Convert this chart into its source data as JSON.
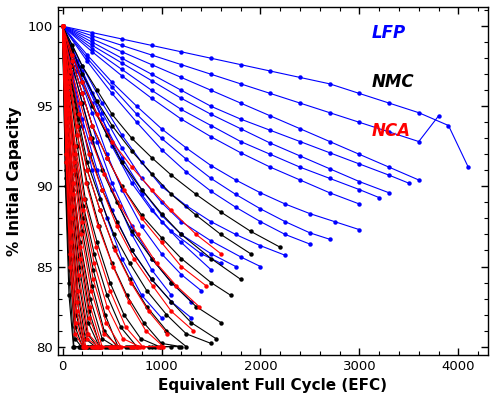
{
  "xlabel": "Equivalent Full Cycle (EFC)",
  "ylabel": "% Initial Capacity",
  "xlim": [
    -50,
    4300
  ],
  "ylim": [
    79.5,
    101.2
  ],
  "yticks": [
    80,
    85,
    90,
    95,
    100
  ],
  "xticks": [
    0,
    1000,
    2000,
    3000,
    4000
  ],
  "bg_color": "#ffffff",
  "lfp_series": [
    {
      "x": [
        0,
        300,
        600,
        900,
        1200,
        1500,
        1800,
        2100,
        2400,
        2700,
        3000,
        3300,
        3600,
        3900,
        4100
      ],
      "y": [
        100,
        99.6,
        99.2,
        98.8,
        98.4,
        98.0,
        97.6,
        97.2,
        96.8,
        96.4,
        95.8,
        95.2,
        94.6,
        93.8,
        91.2
      ]
    },
    {
      "x": [
        0,
        300,
        600,
        900,
        1200,
        1500,
        1800,
        2100,
        2400,
        2700,
        3000,
        3300,
        3600,
        3800
      ],
      "y": [
        100,
        99.4,
        98.8,
        98.2,
        97.6,
        97.0,
        96.4,
        95.8,
        95.2,
        94.6,
        94.0,
        93.4,
        92.8,
        94.4
      ]
    },
    {
      "x": [
        0,
        300,
        600,
        900,
        1200,
        1500,
        1800,
        2100,
        2400,
        2700,
        3000,
        3300,
        3600
      ],
      "y": [
        100,
        99.2,
        98.4,
        97.6,
        96.8,
        96.0,
        95.2,
        94.4,
        93.6,
        92.8,
        92.0,
        91.2,
        90.4
      ]
    },
    {
      "x": [
        0,
        300,
        600,
        900,
        1200,
        1500,
        1800,
        2100,
        2400,
        2700,
        3000,
        3300,
        3500
      ],
      "y": [
        100,
        99.0,
        98.0,
        97.0,
        96.0,
        95.0,
        94.2,
        93.5,
        92.8,
        92.1,
        91.4,
        90.7,
        90.2
      ]
    },
    {
      "x": [
        0,
        300,
        600,
        900,
        1200,
        1500,
        1800,
        2100,
        2400,
        2700,
        3000,
        3300
      ],
      "y": [
        100,
        98.8,
        97.7,
        96.6,
        95.5,
        94.5,
        93.6,
        92.7,
        91.9,
        91.1,
        90.3,
        89.6
      ]
    },
    {
      "x": [
        0,
        300,
        600,
        900,
        1200,
        1500,
        1800,
        2100,
        2400,
        2700,
        3000,
        3200
      ],
      "y": [
        100,
        98.6,
        97.3,
        96.0,
        94.8,
        93.8,
        92.8,
        92.0,
        91.2,
        90.5,
        89.8,
        89.3
      ]
    },
    {
      "x": [
        0,
        300,
        600,
        900,
        1200,
        1500,
        1800,
        2100,
        2400,
        2700,
        3000
      ],
      "y": [
        100,
        98.4,
        96.9,
        95.5,
        94.2,
        93.1,
        92.1,
        91.2,
        90.4,
        89.6,
        88.9
      ]
    },
    {
      "x": [
        0,
        250,
        500,
        750,
        1000,
        1250,
        1500,
        1750,
        2000,
        2250,
        2500,
        2750,
        3000
      ],
      "y": [
        100,
        98.2,
        96.5,
        95.0,
        93.6,
        92.4,
        91.3,
        90.4,
        89.6,
        88.9,
        88.3,
        87.8,
        87.3
      ]
    },
    {
      "x": [
        0,
        250,
        500,
        750,
        1000,
        1250,
        1500,
        1750,
        2000,
        2250,
        2500,
        2700
      ],
      "y": [
        100,
        98.0,
        96.2,
        94.5,
        93.0,
        91.7,
        90.5,
        89.5,
        88.6,
        87.8,
        87.1,
        86.7
      ]
    },
    {
      "x": [
        0,
        250,
        500,
        750,
        1000,
        1250,
        1500,
        1750,
        2000,
        2250,
        2500
      ],
      "y": [
        100,
        97.8,
        95.8,
        94.0,
        92.3,
        90.9,
        89.7,
        88.7,
        87.8,
        87.0,
        86.4
      ]
    },
    {
      "x": [
        0,
        200,
        400,
        600,
        800,
        1000,
        1250,
        1500,
        1750,
        2000,
        2250
      ],
      "y": [
        100,
        97.5,
        95.2,
        93.2,
        91.5,
        90.0,
        88.8,
        87.8,
        87.0,
        86.3,
        85.7
      ]
    },
    {
      "x": [
        0,
        200,
        400,
        600,
        800,
        1000,
        1200,
        1500,
        1800,
        2000
      ],
      "y": [
        100,
        97.2,
        94.6,
        92.4,
        90.5,
        89.0,
        87.8,
        86.6,
        85.6,
        85.0
      ]
    },
    {
      "x": [
        0,
        200,
        400,
        600,
        800,
        1000,
        1200,
        1500,
        1750
      ],
      "y": [
        100,
        97.0,
        94.2,
        91.8,
        89.8,
        88.2,
        87.0,
        85.8,
        85.0
      ]
    },
    {
      "x": [
        0,
        150,
        300,
        500,
        700,
        900,
        1100,
        1400,
        1600
      ],
      "y": [
        100,
        97.5,
        95.2,
        92.5,
        90.2,
        88.5,
        87.2,
        85.8,
        85.2
      ]
    },
    {
      "x": [
        0,
        150,
        300,
        450,
        600,
        800,
        1000,
        1200,
        1500
      ],
      "y": [
        100,
        97.8,
        95.8,
        93.5,
        91.5,
        89.5,
        87.8,
        86.5,
        84.8
      ]
    },
    {
      "x": [
        0,
        150,
        300,
        450,
        600,
        800,
        1000,
        1200,
        1400
      ],
      "y": [
        100,
        97.2,
        94.6,
        92.0,
        89.8,
        87.5,
        85.8,
        84.5,
        83.5
      ]
    },
    {
      "x": [
        0,
        100,
        200,
        350,
        500,
        700,
        900,
        1100,
        1300
      ],
      "y": [
        100,
        97.8,
        95.8,
        92.8,
        90.2,
        87.5,
        85.5,
        84.0,
        82.8
      ]
    },
    {
      "x": [
        0,
        100,
        200,
        350,
        500,
        700,
        900,
        1100,
        1300
      ],
      "y": [
        100,
        97.0,
        94.2,
        91.0,
        88.5,
        86.0,
        84.2,
        82.8,
        81.8
      ]
    },
    {
      "x": [
        0,
        100,
        200,
        300,
        500,
        700,
        900,
        1100
      ],
      "y": [
        100,
        97.5,
        95.2,
        92.8,
        89.8,
        87.0,
        84.8,
        83.2
      ]
    },
    {
      "x": [
        0,
        100,
        200,
        300,
        450,
        600,
        800,
        1000
      ],
      "y": [
        100,
        96.8,
        93.8,
        91.0,
        88.0,
        85.5,
        83.2,
        81.8
      ]
    }
  ],
  "nmc_series": [
    {
      "x": [
        0,
        100,
        200,
        350,
        500,
        700,
        900,
        1100,
        1350,
        1600,
        1900,
        2200
      ],
      "y": [
        100,
        98.8,
        97.5,
        96.0,
        94.5,
        93.0,
        91.8,
        90.7,
        89.5,
        88.4,
        87.2,
        86.2
      ]
    },
    {
      "x": [
        0,
        100,
        200,
        350,
        500,
        700,
        900,
        1100,
        1350,
        1600,
        1900
      ],
      "y": [
        100,
        98.5,
        97.0,
        95.3,
        93.8,
        92.2,
        90.8,
        89.5,
        88.2,
        87.0,
        85.8
      ]
    },
    {
      "x": [
        0,
        100,
        200,
        300,
        450,
        600,
        800,
        1000,
        1200,
        1500,
        1800
      ],
      "y": [
        100,
        98.2,
        96.5,
        95.0,
        93.2,
        91.5,
        89.8,
        88.3,
        87.0,
        85.5,
        84.2
      ]
    },
    {
      "x": [
        0,
        100,
        200,
        300,
        450,
        600,
        800,
        1000,
        1200,
        1500,
        1700
      ],
      "y": [
        100,
        97.8,
        95.8,
        93.8,
        91.8,
        90.0,
        88.2,
        86.8,
        85.5,
        84.0,
        83.2
      ]
    },
    {
      "x": [
        0,
        100,
        200,
        300,
        400,
        550,
        700,
        900,
        1100,
        1350,
        1600
      ],
      "y": [
        100,
        97.5,
        95.2,
        93.0,
        91.0,
        89.0,
        87.2,
        85.5,
        84.0,
        82.5,
        81.5
      ]
    },
    {
      "x": [
        0,
        80,
        160,
        280,
        400,
        550,
        700,
        900,
        1100,
        1300,
        1550
      ],
      "y": [
        100,
        97.2,
        94.5,
        92.0,
        89.8,
        87.8,
        86.0,
        84.2,
        82.8,
        81.5,
        80.5
      ]
    },
    {
      "x": [
        0,
        80,
        160,
        250,
        380,
        520,
        680,
        850,
        1050,
        1250,
        1500
      ],
      "y": [
        100,
        97.0,
        94.2,
        91.5,
        89.2,
        87.0,
        85.2,
        83.5,
        82.0,
        80.8,
        80.2
      ]
    },
    {
      "x": [
        0,
        80,
        160,
        250,
        380,
        520,
        680,
        850,
        1050,
        1250
      ],
      "y": [
        100,
        96.8,
        93.8,
        91.0,
        88.5,
        86.2,
        84.2,
        82.5,
        81.0,
        80.0
      ]
    },
    {
      "x": [
        0,
        70,
        150,
        250,
        370,
        500,
        650,
        820,
        1000,
        1200
      ],
      "y": [
        100,
        96.5,
        93.2,
        90.2,
        87.5,
        85.2,
        83.2,
        81.5,
        80.2,
        80.0
      ]
    },
    {
      "x": [
        0,
        70,
        150,
        230,
        350,
        480,
        620,
        790,
        980,
        1180
      ],
      "y": [
        100,
        96.2,
        92.5,
        89.2,
        86.5,
        84.0,
        82.0,
        80.5,
        80.0,
        80.0
      ]
    },
    {
      "x": [
        0,
        60,
        130,
        210,
        320,
        450,
        590,
        750,
        930,
        1100
      ],
      "y": [
        100,
        95.8,
        92.0,
        88.8,
        85.8,
        83.2,
        81.2,
        80.0,
        80.0,
        80.0
      ]
    },
    {
      "x": [
        0,
        60,
        130,
        210,
        310,
        430,
        560,
        720,
        900
      ],
      "y": [
        100,
        95.5,
        91.5,
        88.0,
        84.8,
        82.0,
        80.0,
        80.0,
        80.0
      ]
    },
    {
      "x": [
        0,
        60,
        130,
        200,
        300,
        420,
        550,
        700,
        870
      ],
      "y": [
        100,
        95.2,
        90.8,
        87.2,
        83.8,
        81.0,
        80.0,
        80.0,
        80.0
      ]
    },
    {
      "x": [
        0,
        50,
        110,
        180,
        280,
        400,
        530,
        680
      ],
      "y": [
        100,
        94.8,
        90.2,
        86.5,
        83.0,
        80.5,
        80.0,
        80.0
      ]
    },
    {
      "x": [
        0,
        50,
        110,
        180,
        270,
        380,
        510,
        660
      ],
      "y": [
        100,
        94.5,
        89.8,
        85.8,
        82.2,
        80.0,
        80.0,
        80.0
      ]
    },
    {
      "x": [
        0,
        50,
        100,
        170,
        260,
        370,
        490,
        640
      ],
      "y": [
        100,
        94.0,
        89.2,
        85.0,
        81.5,
        80.0,
        80.0,
        80.0
      ]
    },
    {
      "x": [
        0,
        50,
        100,
        160,
        250,
        350,
        470
      ],
      "y": [
        100,
        93.5,
        88.5,
        84.2,
        80.8,
        80.0,
        80.0
      ]
    },
    {
      "x": [
        0,
        40,
        90,
        150,
        230,
        330,
        450
      ],
      "y": [
        100,
        93.0,
        87.8,
        83.5,
        80.5,
        80.0,
        80.0
      ]
    },
    {
      "x": [
        0,
        40,
        90,
        150,
        220,
        320,
        430
      ],
      "y": [
        100,
        92.5,
        87.0,
        82.8,
        80.0,
        80.0,
        80.0
      ]
    },
    {
      "x": [
        0,
        40,
        85,
        140,
        210,
        300
      ],
      "y": [
        100,
        92.0,
        86.2,
        82.0,
        80.0,
        80.0
      ]
    },
    {
      "x": [
        0,
        35,
        80,
        130,
        200,
        290
      ],
      "y": [
        100,
        91.5,
        85.5,
        81.2,
        80.0,
        80.0
      ]
    },
    {
      "x": [
        0,
        35,
        75,
        125,
        190,
        280
      ],
      "y": [
        100,
        91.0,
        84.8,
        80.5,
        80.0,
        80.0
      ]
    },
    {
      "x": [
        0,
        30,
        70,
        115,
        175,
        260
      ],
      "y": [
        100,
        90.5,
        84.0,
        80.0,
        80.0,
        80.0
      ]
    },
    {
      "x": [
        0,
        30,
        65,
        110,
        170,
        250
      ],
      "y": [
        100,
        90.0,
        83.2,
        80.0,
        80.0,
        80.0
      ]
    }
  ],
  "nca_series": [
    {
      "x": [
        0,
        100,
        200,
        350,
        500,
        700,
        900,
        1100,
        1350,
        1600
      ],
      "y": [
        100,
        98.2,
        96.5,
        94.5,
        92.8,
        91.2,
        89.8,
        88.5,
        87.0,
        85.8
      ]
    },
    {
      "x": [
        0,
        100,
        200,
        300,
        450,
        620,
        800,
        1000,
        1200,
        1450
      ],
      "y": [
        100,
        97.8,
        95.8,
        93.8,
        91.8,
        89.8,
        88.0,
        86.5,
        85.0,
        83.8
      ]
    },
    {
      "x": [
        0,
        80,
        180,
        280,
        420,
        580,
        760,
        950,
        1150,
        1380
      ],
      "y": [
        100,
        97.5,
        95.2,
        93.0,
        90.8,
        88.8,
        87.0,
        85.2,
        83.8,
        82.5
      ]
    },
    {
      "x": [
        0,
        80,
        170,
        270,
        400,
        550,
        720,
        910,
        1100,
        1320
      ],
      "y": [
        100,
        97.2,
        94.5,
        92.0,
        89.8,
        87.5,
        85.5,
        83.8,
        82.2,
        81.0
      ]
    },
    {
      "x": [
        0,
        70,
        150,
        250,
        380,
        530,
        690,
        870,
        1060
      ],
      "y": [
        100,
        96.8,
        93.8,
        91.0,
        88.5,
        86.0,
        84.0,
        82.2,
        80.8
      ]
    },
    {
      "x": [
        0,
        70,
        150,
        240,
        360,
        510,
        670,
        840,
        1020
      ],
      "y": [
        100,
        96.5,
        93.2,
        90.2,
        87.5,
        85.0,
        82.8,
        81.0,
        80.0
      ]
    },
    {
      "x": [
        0,
        60,
        130,
        220,
        340,
        480,
        640,
        810,
        990
      ],
      "y": [
        100,
        96.2,
        92.5,
        89.2,
        86.2,
        83.5,
        81.2,
        80.0,
        80.0
      ]
    },
    {
      "x": [
        0,
        60,
        130,
        210,
        320,
        450,
        610,
        780,
        960
      ],
      "y": [
        100,
        95.8,
        92.0,
        88.5,
        85.2,
        82.5,
        80.5,
        80.0,
        80.0
      ]
    },
    {
      "x": [
        0,
        55,
        120,
        200,
        310,
        440,
        590,
        760
      ],
      "y": [
        100,
        95.5,
        91.5,
        87.8,
        84.2,
        81.5,
        80.0,
        80.0
      ]
    },
    {
      "x": [
        0,
        55,
        115,
        190,
        290,
        420,
        570,
        740
      ],
      "y": [
        100,
        95.2,
        91.0,
        87.0,
        83.5,
        80.8,
        80.0,
        80.0
      ]
    },
    {
      "x": [
        0,
        50,
        110,
        180,
        280,
        400,
        540,
        710
      ],
      "y": [
        100,
        94.8,
        90.2,
        86.2,
        82.5,
        80.0,
        80.0,
        80.0
      ]
    },
    {
      "x": [
        0,
        50,
        105,
        175,
        270,
        385,
        520,
        690
      ],
      "y": [
        100,
        94.5,
        89.5,
        85.5,
        81.8,
        80.0,
        80.0,
        80.0
      ]
    },
    {
      "x": [
        0,
        45,
        100,
        165,
        260,
        375,
        505
      ],
      "y": [
        100,
        94.0,
        88.8,
        84.5,
        80.8,
        80.0,
        80.0
      ]
    },
    {
      "x": [
        0,
        45,
        95,
        158,
        248,
        360,
        490
      ],
      "y": [
        100,
        93.5,
        88.0,
        83.5,
        80.5,
        80.0,
        80.0
      ]
    },
    {
      "x": [
        0,
        40,
        90,
        150,
        235,
        345,
        475
      ],
      "y": [
        100,
        93.0,
        87.2,
        82.8,
        80.0,
        80.0,
        80.0
      ]
    },
    {
      "x": [
        0,
        40,
        85,
        142,
        225,
        330
      ],
      "y": [
        100,
        92.5,
        86.5,
        82.2,
        80.0,
        80.0
      ]
    },
    {
      "x": [
        0,
        35,
        80,
        135,
        215,
        315
      ],
      "y": [
        100,
        92.0,
        85.8,
        81.5,
        80.0,
        80.0
      ]
    },
    {
      "x": [
        0,
        35,
        75,
        128,
        205,
        302
      ],
      "y": [
        100,
        91.5,
        85.0,
        80.8,
        80.0,
        80.0
      ]
    }
  ]
}
